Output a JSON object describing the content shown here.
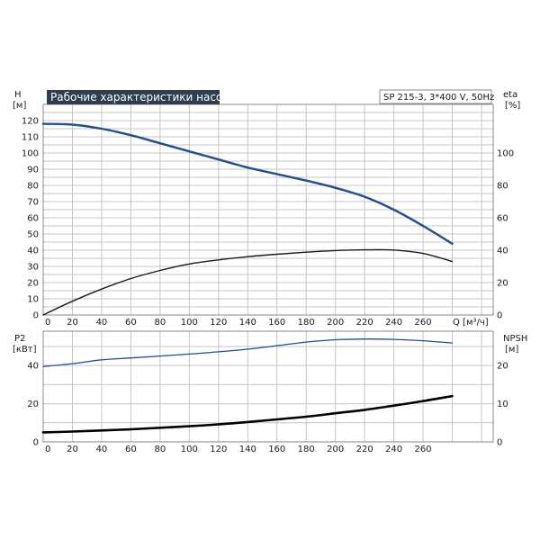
{
  "chart_data": [
    {
      "type": "line",
      "title": "Рабочие характеристики насоса",
      "annotation": "SP 215-3, 3*400 V, 50Hz",
      "xlabel": "Q [м³/ч]",
      "x_ticks": [
        0,
        20,
        40,
        60,
        80,
        100,
        120,
        140,
        160,
        180,
        200,
        220,
        240,
        260
      ],
      "xlim": [
        0,
        308
      ],
      "left_axis": {
        "label_line1": "H",
        "label_line2": "[м]",
        "ticks": [
          0,
          10,
          20,
          30,
          40,
          50,
          60,
          70,
          80,
          90,
          100,
          110,
          120
        ],
        "ylim": [
          0,
          130
        ]
      },
      "right_axis": {
        "label_line1": "eta",
        "label_line2": "[%]",
        "ticks": [
          0,
          20,
          40,
          60,
          80,
          100
        ],
        "ylim": [
          0,
          130
        ]
      },
      "grid": true,
      "series": [
        {
          "axis": "left",
          "color": "#1f4f8f",
          "x": [
            0,
            20,
            40,
            60,
            80,
            100,
            120,
            140,
            160,
            180,
            200,
            220,
            240,
            260,
            280
          ],
          "y": [
            118,
            117.5,
            115,
            111,
            106,
            101,
            96,
            91,
            87,
            83,
            78.5,
            73,
            65,
            55,
            44
          ]
        },
        {
          "axis": "right",
          "color": "#1a1a1a",
          "x": [
            0,
            20,
            40,
            60,
            80,
            100,
            120,
            140,
            160,
            180,
            200,
            220,
            240,
            260,
            280
          ],
          "y": [
            0,
            8.5,
            16,
            22.5,
            27.5,
            31.5,
            34,
            36,
            37.5,
            38.8,
            39.8,
            40.2,
            40.1,
            38,
            33
          ]
        }
      ]
    },
    {
      "type": "line",
      "xlim": [
        0,
        308
      ],
      "x_ticks": [
        0,
        20,
        40,
        60,
        80,
        100,
        120,
        140,
        160,
        180,
        200,
        220,
        240,
        260
      ],
      "left_axis": {
        "label_line1": "P2",
        "label_line2": "[кВт]",
        "ticks": [
          0,
          20,
          40
        ],
        "ylim": [
          0,
          58
        ]
      },
      "right_axis": {
        "label_line1": "NPSH",
        "label_line2": "[м]",
        "ticks": [
          0,
          10,
          20
        ],
        "ylim": [
          0,
          29
        ]
      },
      "grid": true,
      "series": [
        {
          "axis": "left",
          "color": "#1f4f8f",
          "x": [
            0,
            20,
            40,
            60,
            80,
            100,
            120,
            140,
            160,
            180,
            200,
            220,
            240,
            260,
            280
          ],
          "y": [
            39.5,
            41,
            43,
            44,
            45,
            46,
            47.2,
            48.6,
            50.4,
            52.3,
            53.5,
            53.9,
            53.7,
            53,
            51.8
          ]
        },
        {
          "axis": "right",
          "color": "#000000",
          "x": [
            0,
            20,
            40,
            60,
            80,
            100,
            120,
            140,
            160,
            180,
            200,
            220,
            240,
            260,
            280
          ],
          "y": [
            2.5,
            2.7,
            3,
            3.3,
            3.7,
            4.1,
            4.6,
            5.2,
            5.9,
            6.6,
            7.5,
            8.4,
            9.5,
            10.7,
            12
          ]
        }
      ]
    }
  ]
}
